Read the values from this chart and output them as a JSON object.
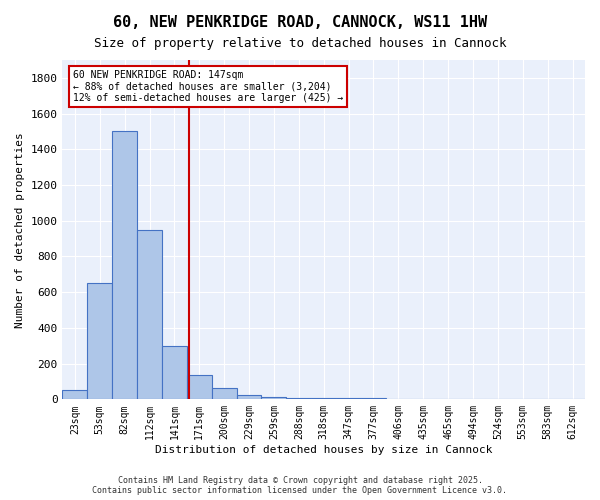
{
  "title": "60, NEW PENKRIDGE ROAD, CANNOCK, WS11 1HW",
  "subtitle": "Size of property relative to detached houses in Cannock",
  "xlabel": "Distribution of detached houses by size in Cannock",
  "ylabel": "Number of detached properties",
  "bar_color": "#aec6e8",
  "bar_edge_color": "#4472c4",
  "background_color": "#eaf0fb",
  "grid_color": "#ffffff",
  "bin_labels": [
    "23sqm",
    "53sqm",
    "82sqm",
    "112sqm",
    "141sqm",
    "171sqm",
    "200sqm",
    "229sqm",
    "259sqm",
    "288sqm",
    "318sqm",
    "347sqm",
    "377sqm",
    "406sqm",
    "435sqm",
    "465sqm",
    "494sqm",
    "524sqm",
    "553sqm",
    "583sqm",
    "612sqm"
  ],
  "bar_heights": [
    50,
    650,
    1500,
    950,
    300,
    135,
    65,
    25,
    15,
    5,
    5,
    5,
    5,
    0,
    0,
    0,
    0,
    0,
    0,
    0,
    0
  ],
  "ylim": [
    0,
    1900
  ],
  "yticks": [
    0,
    200,
    400,
    600,
    800,
    1000,
    1200,
    1400,
    1600,
    1800
  ],
  "red_line_x": 4.6,
  "annotation_title": "60 NEW PENKRIDGE ROAD: 147sqm",
  "annotation_line1": "← 88% of detached houses are smaller (3,204)",
  "annotation_line2": "12% of semi-detached houses are larger (425) →",
  "annotation_box_color": "#ffffff",
  "annotation_border_color": "#cc0000",
  "red_line_color": "#cc0000",
  "footer_line1": "Contains HM Land Registry data © Crown copyright and database right 2025.",
  "footer_line2": "Contains public sector information licensed under the Open Government Licence v3.0."
}
